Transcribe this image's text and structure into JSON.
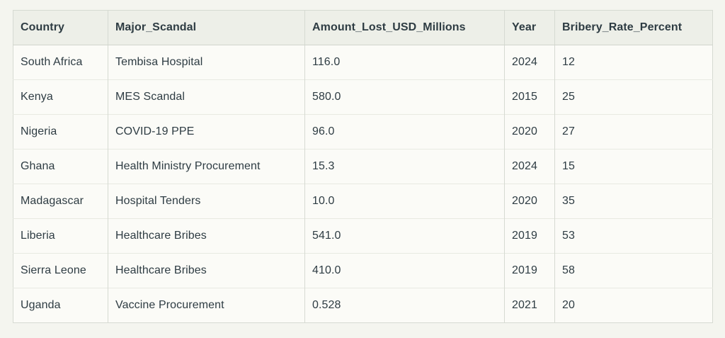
{
  "colors": {
    "page_background": "#f4f5ef",
    "header_background": "#edefe8",
    "cell_background": "#fbfbf7",
    "border": "#d6dad2",
    "row_divider": "#e8eae2",
    "text": "#2e3c43"
  },
  "chart_data": {
    "type": "table",
    "columns": [
      {
        "key": "country",
        "label": "Country"
      },
      {
        "key": "scandal",
        "label": "Major_Scandal"
      },
      {
        "key": "amount",
        "label": "Amount_Lost_USD_Millions"
      },
      {
        "key": "year",
        "label": "Year"
      },
      {
        "key": "rate",
        "label": "Bribery_Rate_Percent"
      }
    ],
    "rows": [
      {
        "country": "South Africa",
        "scandal": "Tembisa Hospital",
        "amount": "116.0",
        "year": "2024",
        "rate": "12"
      },
      {
        "country": "Kenya",
        "scandal": "MES Scandal",
        "amount": "580.0",
        "year": "2015",
        "rate": "25"
      },
      {
        "country": "Nigeria",
        "scandal": "COVID-19 PPE",
        "amount": "96.0",
        "year": "2020",
        "rate": "27"
      },
      {
        "country": "Ghana",
        "scandal": "Health Ministry Procurement",
        "amount": "15.3",
        "year": "2024",
        "rate": "15"
      },
      {
        "country": "Madagascar",
        "scandal": "Hospital Tenders",
        "amount": "10.0",
        "year": "2020",
        "rate": "35"
      },
      {
        "country": "Liberia",
        "scandal": "Healthcare Bribes",
        "amount": "541.0",
        "year": "2019",
        "rate": "53"
      },
      {
        "country": "Sierra Leone",
        "scandal": "Healthcare Bribes",
        "amount": "410.0",
        "year": "2019",
        "rate": "58"
      },
      {
        "country": "Uganda",
        "scandal": "Vaccine Procurement",
        "amount": "0.528",
        "year": "2021",
        "rate": "20"
      }
    ]
  }
}
